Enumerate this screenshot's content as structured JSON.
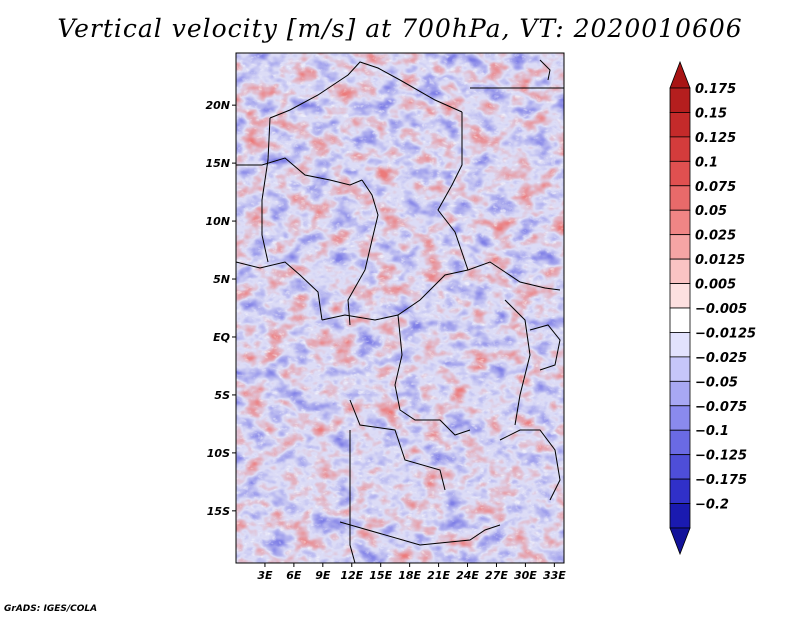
{
  "title": "Vertical velocity [m/s] at 700hPa, VT: 2020010606",
  "credit": "GrADS: IGES/COLA",
  "map": {
    "lon_range": [
      0,
      34
    ],
    "lat_range": [
      -19.5,
      24.5
    ],
    "lat_ticks": [
      {
        "value": 20,
        "label": "20N"
      },
      {
        "value": 15,
        "label": "15N"
      },
      {
        "value": 10,
        "label": "10N"
      },
      {
        "value": 5,
        "label": "5N"
      },
      {
        "value": 0,
        "label": "EQ"
      },
      {
        "value": -5,
        "label": "5S"
      },
      {
        "value": -10,
        "label": "10S"
      },
      {
        "value": -15,
        "label": "15S"
      }
    ],
    "lon_ticks": [
      {
        "value": 3,
        "label": "3E"
      },
      {
        "value": 6,
        "label": "6E"
      },
      {
        "value": 9,
        "label": "9E"
      },
      {
        "value": 12,
        "label": "12E"
      },
      {
        "value": 15,
        "label": "15E"
      },
      {
        "value": 18,
        "label": "18E"
      },
      {
        "value": 21,
        "label": "21E"
      },
      {
        "value": 24,
        "label": "24E"
      },
      {
        "value": 27,
        "label": "27E"
      },
      {
        "value": 30,
        "label": "30E"
      },
      {
        "value": 33,
        "label": "33E"
      }
    ]
  },
  "colorbar": {
    "levels": [
      {
        "label": "0.175",
        "color": "#b41e1e"
      },
      {
        "label": "0.15",
        "color": "#c42a2a"
      },
      {
        "label": "0.125",
        "color": "#d43c3c"
      },
      {
        "label": "0.1",
        "color": "#e05050"
      },
      {
        "label": "0.075",
        "color": "#e86a6a"
      },
      {
        "label": "0.05",
        "color": "#f08585"
      },
      {
        "label": "0.025",
        "color": "#f6a5a5"
      },
      {
        "label": "0.0125",
        "color": "#fac3c3"
      },
      {
        "label": "0.005",
        "color": "#fde0e0"
      },
      {
        "label": "−0.005",
        "color": "#ffffff"
      },
      {
        "label": "−0.0125",
        "color": "#e2e2fd"
      },
      {
        "label": "−0.025",
        "color": "#c6c6f9"
      },
      {
        "label": "−0.05",
        "color": "#a8a8f3"
      },
      {
        "label": "−0.075",
        "color": "#8a8aee"
      },
      {
        "label": "−0.1",
        "color": "#6a6ae4"
      },
      {
        "label": "−0.125",
        "color": "#4e4ed8"
      },
      {
        "label": "−0.175",
        "color": "#3030c8"
      },
      {
        "label": "−0.2",
        "color": "#1a1ab0"
      }
    ],
    "top_arrow_color": "#a81414",
    "bottom_arrow_color": "#12129a"
  }
}
